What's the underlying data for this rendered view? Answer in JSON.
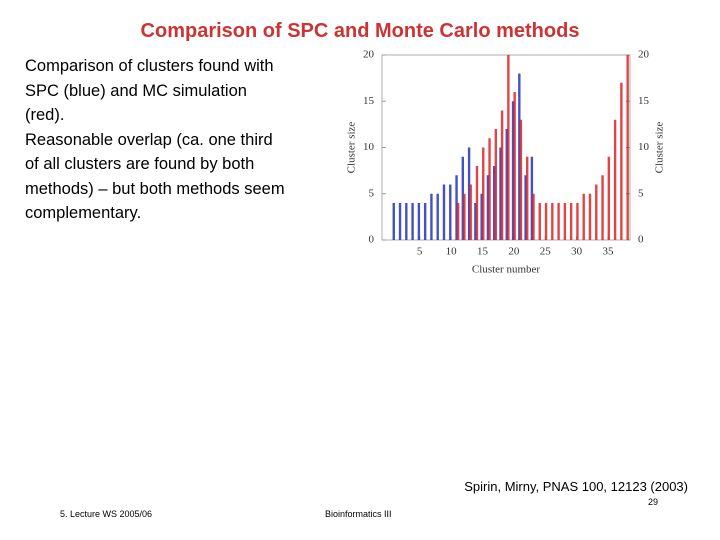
{
  "title": "Comparison of SPC and Monte Carlo methods",
  "body": [
    "Comparison of clusters found with",
    "SPC (blue) and MC simulation",
    "(red).",
    "Reasonable overlap (ca. one third",
    "of all clusters are found by both",
    "methods) – but both methods seem",
    "complementary."
  ],
  "citation": "Spirin, Mirny, PNAS 100, 12123 (2003)",
  "footer": {
    "left": "5. Lecture WS 2005/06",
    "center": "Bioinformatics III",
    "page": "29"
  },
  "chart_data": {
    "type": "bar",
    "xlabel": "Cluster number",
    "ylabel": "Cluster size",
    "y2label": "Cluster size",
    "x": [
      1,
      2,
      3,
      4,
      5,
      6,
      7,
      8,
      9,
      10,
      11,
      12,
      13,
      14,
      15,
      16,
      17,
      18,
      19,
      20,
      21,
      22,
      23,
      24,
      25,
      26,
      27,
      28,
      29,
      30,
      31,
      32,
      33,
      34,
      35,
      36,
      37,
      38
    ],
    "series": [
      {
        "name": "SPC",
        "color": "#2233bb",
        "values": [
          4,
          4,
          4,
          4,
          4,
          4,
          5,
          5,
          6,
          6,
          7,
          9,
          10,
          4,
          5,
          7,
          8,
          10,
          12,
          15,
          18,
          7,
          9,
          null,
          null,
          null,
          null,
          null,
          null,
          null,
          null,
          null,
          null,
          null,
          null,
          null,
          null,
          null
        ]
      },
      {
        "name": "MC",
        "color": "#dd2222",
        "values": [
          null,
          null,
          null,
          null,
          null,
          null,
          null,
          null,
          null,
          null,
          4,
          5,
          6,
          8,
          10,
          11,
          12,
          14,
          20,
          16,
          13,
          9,
          5,
          4,
          4,
          4,
          4,
          4,
          4,
          4,
          5,
          5,
          6,
          7,
          9,
          13,
          17,
          20
        ]
      }
    ],
    "xlim": [
      -1,
      38.5
    ],
    "xticks": [
      5,
      10,
      15,
      20,
      25,
      30,
      35
    ],
    "ylim": [
      0,
      20
    ],
    "yticks": [
      0,
      5,
      10,
      15,
      20
    ],
    "y2lim": [
      0,
      20
    ],
    "y2ticks": [
      0,
      5,
      10,
      15,
      20
    ]
  }
}
